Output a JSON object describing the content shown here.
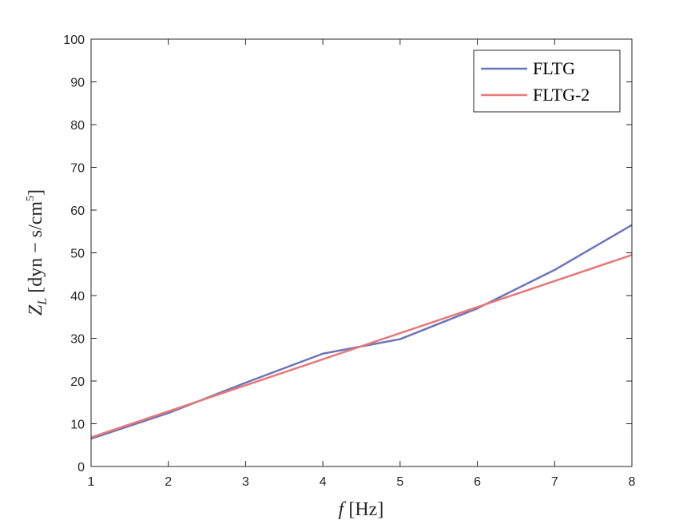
{
  "chart_data": {
    "type": "line",
    "xlabel": {
      "italic": "f",
      "rest": " [Hz]"
    },
    "ylabel": {
      "main": "Z",
      "sub": "L",
      "rest": " [dyn − s/cm",
      "sup": "5",
      "close": "]"
    },
    "xlim": [
      1,
      8
    ],
    "ylim": [
      0,
      100
    ],
    "xticks": [
      1,
      2,
      3,
      4,
      5,
      6,
      7,
      8
    ],
    "yticks": [
      0,
      10,
      20,
      30,
      40,
      50,
      60,
      70,
      80,
      90,
      100
    ],
    "grid": false,
    "legend_position": "top-right",
    "series": [
      {
        "name": "FLTG",
        "color": "#6b75b8",
        "x": [
          1,
          2,
          3,
          4,
          5,
          6,
          7,
          8
        ],
        "y": [
          6.5,
          12.5,
          19.6,
          26.4,
          29.8,
          37.0,
          46.0,
          56.5
        ]
      },
      {
        "name": "FLTG-2",
        "color": "#e8787a",
        "x": [
          1,
          8
        ],
        "y": [
          6.8,
          49.5
        ]
      }
    ]
  }
}
